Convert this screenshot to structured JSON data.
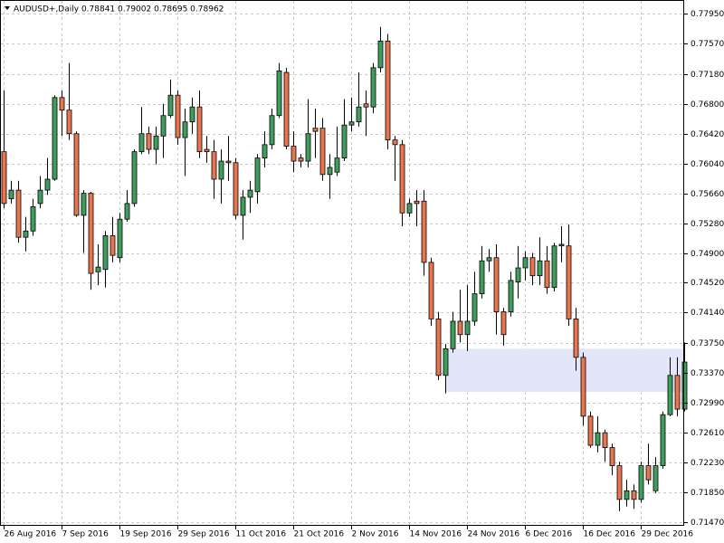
{
  "chart_data": {
    "type": "candlestick",
    "title": "AUDUSD+,Daily  0.78841 0.79002 0.78695 0.78962",
    "categories": [
      "26 Aug 2016",
      null,
      null,
      null,
      null,
      null,
      null,
      null,
      "7 Sep 2016",
      null,
      null,
      null,
      null,
      null,
      null,
      null,
      "19 Sep 2016",
      null,
      null,
      null,
      null,
      null,
      null,
      null,
      "29 Sep 2016",
      null,
      null,
      null,
      null,
      null,
      null,
      null,
      "11 Oct 2016",
      null,
      null,
      null,
      null,
      null,
      null,
      null,
      "21 Oct 2016",
      null,
      null,
      null,
      null,
      null,
      null,
      null,
      "2 Nov 2016",
      null,
      null,
      null,
      null,
      null,
      null,
      null,
      "14 Nov 2016",
      null,
      null,
      null,
      null,
      null,
      null,
      null,
      "24 Nov 2016",
      null,
      null,
      null,
      null,
      null,
      null,
      null,
      "6 Dec 2016",
      null,
      null,
      null,
      null,
      null,
      null,
      null,
      "16 Dec 2016",
      null,
      null,
      null,
      null,
      null,
      null,
      null,
      "29 Dec 2016",
      null,
      null,
      null,
      null,
      null,
      null
    ],
    "open": [
      0.7619,
      0.7559,
      0.757,
      0.751,
      0.7518,
      0.7553,
      0.757,
      0.7584,
      0.7688,
      0.7672,
      0.7642,
      0.7538,
      0.7566,
      0.7466,
      0.7469,
      0.7512,
      0.7484,
      0.7533,
      0.7553,
      0.7619,
      0.7642,
      0.7622,
      0.7639,
      0.7665,
      0.7691,
      0.7637,
      0.7657,
      0.7676,
      0.7622,
      0.7619,
      0.7584,
      0.7607,
      0.7605,
      0.7538,
      0.7561,
      0.7568,
      0.7611,
      0.7628,
      0.7665,
      0.772,
      0.7626,
      0.7611,
      0.7607,
      0.7649,
      0.7649,
      0.759,
      0.7593,
      0.7611,
      0.7653,
      0.7657,
      0.768,
      0.7676,
      0.7726,
      0.776,
      0.7634,
      0.7628,
      0.7541,
      0.7556,
      0.7556,
      0.7478,
      0.7406,
      0.7334,
      0.7368,
      0.7403,
      0.7386,
      0.7403,
      0.7438,
      0.748,
      0.7484,
      0.7415,
      0.7415,
      0.7453,
      0.7471,
      0.7484,
      0.7461,
      0.748,
      0.7446,
      0.7499,
      0.7499,
      0.7406,
      0.7357,
      0.7282,
      0.7245,
      0.7261,
      0.7242,
      0.7219,
      0.7176,
      0.7187,
      0.7176,
      0.7219,
      0.7187,
      0.7219,
      0.7284,
      0.7334,
      0.7291
    ],
    "high": [
      0.7697,
      0.7582,
      0.7582,
      0.7536,
      0.7559,
      0.7588,
      0.7611,
      0.7691,
      0.7697,
      0.7732,
      0.7645,
      0.757,
      0.7568,
      0.7501,
      0.7518,
      0.7536,
      0.7541,
      0.757,
      0.7622,
      0.7676,
      0.7651,
      0.7651,
      0.768,
      0.7711,
      0.7697,
      0.7674,
      0.7688,
      0.7697,
      0.7639,
      0.7634,
      0.7622,
      0.7639,
      0.7611,
      0.757,
      0.7582,
      0.7616,
      0.7645,
      0.7674,
      0.7732,
      0.7726,
      0.7645,
      0.7616,
      0.7686,
      0.7674,
      0.7662,
      0.7616,
      0.7651,
      0.7686,
      0.7688,
      0.772,
      0.7697,
      0.7732,
      0.7778,
      0.7769,
      0.7639,
      0.7634,
      0.7559,
      0.757,
      0.757,
      0.7484,
      0.7415,
      0.7374,
      0.7415,
      0.7443,
      0.7449,
      0.7466,
      0.7499,
      0.7495,
      0.7501,
      0.742,
      0.7466,
      0.7499,
      0.7492,
      0.749,
      0.751,
      0.7499,
      0.7503,
      0.7524,
      0.7526,
      0.742,
      0.7363,
      0.7288,
      0.7282,
      0.7265,
      0.7247,
      0.7224,
      0.7201,
      0.7195,
      0.7224,
      0.7247,
      0.723,
      0.7288,
      0.7357,
      0.7357,
      0.7376
    ],
    "low": [
      0.7547,
      0.7553,
      0.7503,
      0.7492,
      0.7512,
      0.7547,
      0.7564,
      0.7582,
      0.7639,
      0.7634,
      0.7536,
      0.749,
      0.7443,
      0.7449,
      0.7446,
      0.7478,
      0.7478,
      0.753,
      0.7549,
      0.7616,
      0.7616,
      0.7603,
      0.7611,
      0.7662,
      0.7628,
      0.7588,
      0.7642,
      0.7611,
      0.7605,
      0.7559,
      0.7553,
      0.7582,
      0.7533,
      0.7507,
      0.7541,
      0.7553,
      0.7599,
      0.7622,
      0.7662,
      0.7622,
      0.7593,
      0.7599,
      0.7599,
      0.7611,
      0.7582,
      0.7559,
      0.7588,
      0.7607,
      0.7645,
      0.7651,
      0.7639,
      0.7668,
      0.772,
      0.7622,
      0.7582,
      0.7524,
      0.7536,
      0.7524,
      0.7461,
      0.7397,
      0.7328,
      0.7311,
      0.7363,
      0.7376,
      0.7365,
      0.7397,
      0.7432,
      0.7466,
      0.7386,
      0.7372,
      0.7409,
      0.7432,
      0.7455,
      0.7449,
      0.7449,
      0.7438,
      0.7441,
      0.7478,
      0.7397,
      0.734,
      0.727,
      0.7242,
      0.7236,
      0.7224,
      0.7207,
      0.7161,
      0.7167,
      0.7164,
      0.7172,
      0.7195,
      0.7184,
      0.7215,
      0.7282,
      0.7282,
      0.7288
    ],
    "close": [
      0.7553,
      0.757,
      0.751,
      0.7518,
      0.7549,
      0.757,
      0.7584,
      0.7688,
      0.7672,
      0.7642,
      0.7538,
      0.7566,
      0.7464,
      0.7472,
      0.7512,
      0.7487,
      0.7533,
      0.7553,
      0.7619,
      0.7642,
      0.7622,
      0.7639,
      0.7665,
      0.7691,
      0.7637,
      0.7657,
      0.7676,
      0.7619,
      0.7619,
      0.7584,
      0.7607,
      0.7605,
      0.7538,
      0.7561,
      0.757,
      0.7611,
      0.7628,
      0.7665,
      0.7722,
      0.7626,
      0.7607,
      0.7607,
      0.7642,
      0.7645,
      0.759,
      0.7599,
      0.7611,
      0.7653,
      0.7657,
      0.7676,
      0.7676,
      0.7726,
      0.776,
      0.7634,
      0.7628,
      0.7541,
      0.7553,
      0.7553,
      0.7478,
      0.7406,
      0.7334,
      0.7368,
      0.7403,
      0.7386,
      0.7403,
      0.7438,
      0.748,
      0.7484,
      0.7415,
      0.7386,
      0.7455,
      0.7471,
      0.7484,
      0.7461,
      0.748,
      0.7446,
      0.7499,
      0.7501,
      0.7406,
      0.7357,
      0.7282,
      0.7245,
      0.7261,
      0.7242,
      0.7219,
      0.7176,
      0.7187,
      0.7176,
      0.7219,
      0.7201,
      0.7219,
      0.7284,
      0.7334,
      0.7291,
      0.7351
    ],
    "up_color": "#3f9e5c",
    "down_color": "#e8764f",
    "zone": {
      "from": 61,
      "to": 94,
      "high": 0.7368,
      "low": 0.7313,
      "color": "#e3e6f8"
    },
    "ylim": [
      0.7147,
      0.7795
    ],
    "yticks": [
      {
        "value": 0.7795,
        "label": "0.77950"
      },
      {
        "value": 0.7757,
        "label": "0.77570"
      },
      {
        "value": 0.7718,
        "label": "0.77180"
      },
      {
        "value": 0.768,
        "label": "0.76800"
      },
      {
        "value": 0.7642,
        "label": "0.76420"
      },
      {
        "value": 0.7604,
        "label": "0.76040"
      },
      {
        "value": 0.7566,
        "label": "0.75660"
      },
      {
        "value": 0.7528,
        "label": "0.75280"
      },
      {
        "value": 0.749,
        "label": "0.74900"
      },
      {
        "value": 0.7452,
        "label": "0.74520"
      },
      {
        "value": 0.7414,
        "label": "0.74140"
      },
      {
        "value": 0.7375,
        "label": "0.73750"
      },
      {
        "value": 0.7337,
        "label": "0.73370"
      },
      {
        "value": 0.7299,
        "label": "0.72990"
      },
      {
        "value": 0.7261,
        "label": "0.72610"
      },
      {
        "value": 0.7223,
        "label": "0.72230"
      },
      {
        "value": 0.7185,
        "label": "0.71850"
      },
      {
        "value": 0.7147,
        "label": "0.71470"
      }
    ],
    "grid": true
  }
}
